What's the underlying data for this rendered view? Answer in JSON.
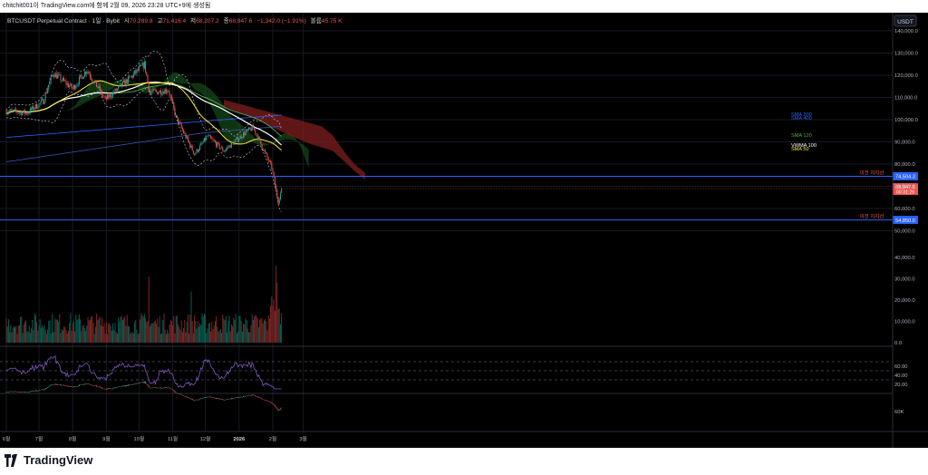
{
  "header": {
    "caption": "chitchit001이 TradingView.com에 함께 2월 09, 2026 23:28 UTC+9에 생성됨"
  },
  "legend": {
    "symbol": "BTCUSDT Perpetual Contract · 1일 · Bybit",
    "o_label": "시",
    "o_value": "70,289.8",
    "h_label": "고",
    "h_value": "71,416.4",
    "l_label": "저",
    "l_value": "68,207.2",
    "c_label": "종",
    "c_value": "68,947.6",
    "change": "−1,342.0 (−1.91%)",
    "vol_label": "볼륨",
    "vol_value": "45.75 K"
  },
  "currency_button": "USDT",
  "price_scale": [
    "140,000.0",
    "130,000.0",
    "120,000.0",
    "110,000.0",
    "100,000.0",
    "90,000.0",
    "80,000.0",
    "70,000.0",
    "60,000.0",
    "50,000.0"
  ],
  "volume_scale": [
    "40,000.0",
    "30,000.0",
    "20,000.0",
    "10,000.0",
    "0.0"
  ],
  "rsi_scale": [
    "60.00",
    "40.00",
    "20.00"
  ],
  "bottom_scale": [
    "60K"
  ],
  "ma_labels": [
    {
      "text": "SMA 200",
      "color": "#2962ff"
    },
    {
      "text": "SMA 400",
      "color": "#2962ff"
    },
    {
      "text": "SMA 120",
      "color": "#4caf50"
    },
    {
      "text": "VWMA 100",
      "color": "#ffffff"
    },
    {
      "text": "SMA 50",
      "color": "#ffeb3b"
    }
  ],
  "levels": [
    {
      "price": 74504.3,
      "label": "74,504.3",
      "note": "이전 지지선"
    },
    {
      "price": 54850.0,
      "label": "54,850.0",
      "note": "이전 지지선"
    }
  ],
  "current_price": {
    "label": "68,947.6",
    "countdown": "00:31:26"
  },
  "time_axis": [
    "6월",
    "7월",
    "8월",
    "9월",
    "10월",
    "11월",
    "12월",
    "2026",
    "2월",
    "3월"
  ],
  "footer": {
    "brand": "TradingView"
  },
  "colors": {
    "up": "#26a69a",
    "down": "#ef5350",
    "support": "#2962ff",
    "sma50": "#ffeb3b",
    "sma120": "#4caf50",
    "vwma100": "#ffffff",
    "rsi": "#7e57c2"
  },
  "chart_data": {
    "type": "candlestick",
    "symbol": "BTCUSDT Perpetual Contract",
    "interval": "1일",
    "exchange": "Bybit",
    "ylim": [
      50000,
      140000
    ],
    "close_path": [
      {
        "date": "2025-06-01",
        "close": 104000
      },
      {
        "date": "2025-06-20",
        "close": 103000
      },
      {
        "date": "2025-07-05",
        "close": 108500
      },
      {
        "date": "2025-07-14",
        "close": 121000
      },
      {
        "date": "2025-08-01",
        "close": 114000
      },
      {
        "date": "2025-08-14",
        "close": 122500
      },
      {
        "date": "2025-08-31",
        "close": 109000
      },
      {
        "date": "2025-09-18",
        "close": 116500
      },
      {
        "date": "2025-10-06",
        "close": 125000
      },
      {
        "date": "2025-10-11",
        "close": 112000
      },
      {
        "date": "2025-10-28",
        "close": 113500
      },
      {
        "date": "2025-11-04",
        "close": 101000
      },
      {
        "date": "2025-11-21",
        "close": 84500
      },
      {
        "date": "2025-12-03",
        "close": 92500
      },
      {
        "date": "2025-12-18",
        "close": 86000
      },
      {
        "date": "2026-01-05",
        "close": 93500
      },
      {
        "date": "2026-01-14",
        "close": 96500
      },
      {
        "date": "2026-01-31",
        "close": 78500
      },
      {
        "date": "2026-02-06",
        "close": 63000
      },
      {
        "date": "2026-02-09",
        "close": 68947.6
      }
    ],
    "support_lines": [
      74504.3,
      54850.0
    ],
    "volume_ylim": [
      0,
      40000
    ],
    "rsi_ylim": [
      0,
      100
    ]
  }
}
